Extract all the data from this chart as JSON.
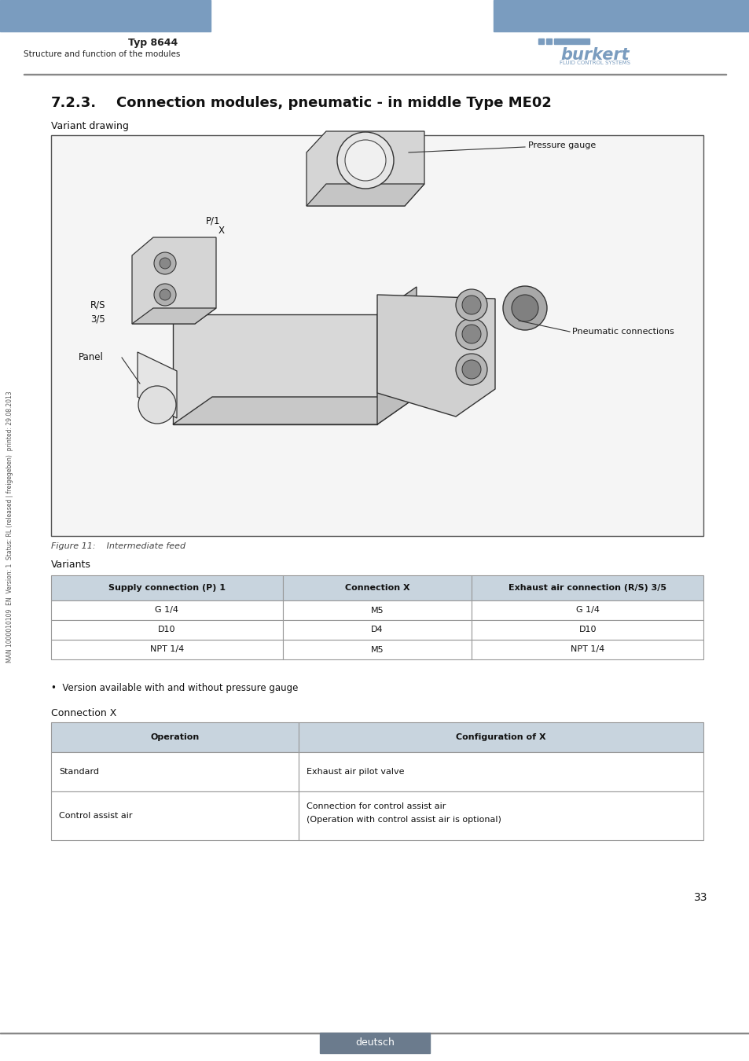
{
  "page_title": "Typ 8644",
  "page_subtitle": "Structure and function of the modules",
  "header_bar_color": "#7a9cbf",
  "variant_drawing_label": "Variant drawing",
  "figure_caption": "Figure 11:    Intermediate feed",
  "variants_label": "Variants",
  "table1_headers": [
    "Supply connection (P) 1",
    "Connection X",
    "Exhaust air connection (R/S) 3/5"
  ],
  "table1_rows": [
    [
      "G 1/4",
      "M5",
      "G 1/4"
    ],
    [
      "D10",
      "D4",
      "D10"
    ],
    [
      "NPT 1/4",
      "M5",
      "NPT 1/4"
    ]
  ],
  "bullet_text": "Version available with and without pressure gauge",
  "connection_x_label": "Connection X",
  "table2_headers": [
    "Operation",
    "Configuration of X"
  ],
  "table2_rows": [
    [
      "Standard",
      "Exhaust air pilot valve"
    ],
    [
      "Control assist air",
      "Connection for control assist air\n(Operation with control assist air is optional)"
    ]
  ],
  "page_number": "33",
  "footer_label": "deutsch",
  "footer_bg": "#6b7b8d",
  "bg_color": "#ffffff",
  "table_header_bg": "#c8d4de",
  "table_border_color": "#999999",
  "sidebar_text": "MAN 1000010109  EN  Version: 1  Status: RL (released | freigegeben)  printed: 29.08.2013"
}
